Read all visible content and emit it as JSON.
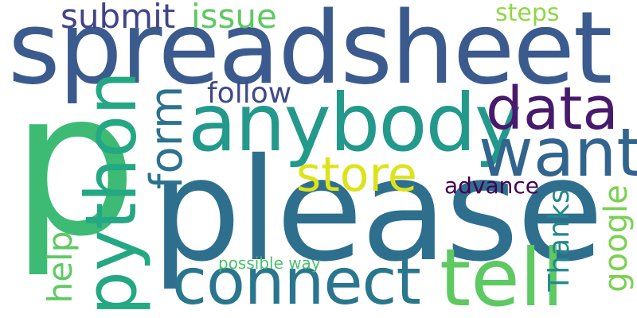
{
  "words": [
    {
      "id": "spreadsheet",
      "text": "spreadsheet",
      "color": "#3b5b8e"
    },
    {
      "id": "please",
      "text": "please",
      "color": "#2f6f8e"
    },
    {
      "id": "p",
      "text": "p",
      "color": "#3dbb74"
    },
    {
      "id": "anybody",
      "text": "anybody",
      "color": "#23998b"
    },
    {
      "id": "python",
      "text": "python",
      "color": "#24a884"
    },
    {
      "id": "tell",
      "text": "tell",
      "color": "#5ec962"
    },
    {
      "id": "connect",
      "text": "connect",
      "color": "#2a768e"
    },
    {
      "id": "want",
      "text": "want",
      "color": "#31658e"
    },
    {
      "id": "data",
      "text": "data",
      "color": "#481a6c"
    },
    {
      "id": "store",
      "text": "store",
      "color": "#dde318"
    },
    {
      "id": "form",
      "text": "form",
      "color": "#2c728e"
    },
    {
      "id": "submit",
      "text": "submit",
      "color": "#414487"
    },
    {
      "id": "issue",
      "text": "issue",
      "color": "#5ec962"
    },
    {
      "id": "steps",
      "text": "steps",
      "color": "#8fd744"
    },
    {
      "id": "follow",
      "text": "follow",
      "color": "#3e4989"
    },
    {
      "id": "advance",
      "text": "advance",
      "color": "#440154"
    },
    {
      "id": "thanks",
      "text": "Thanks",
      "color": "#238a8d"
    },
    {
      "id": "google",
      "text": "google",
      "color": "#7ad151"
    },
    {
      "id": "help",
      "text": "help",
      "color": "#5ec962"
    },
    {
      "id": "possible-way",
      "text": "possible way",
      "color": "#4ac16d"
    }
  ]
}
